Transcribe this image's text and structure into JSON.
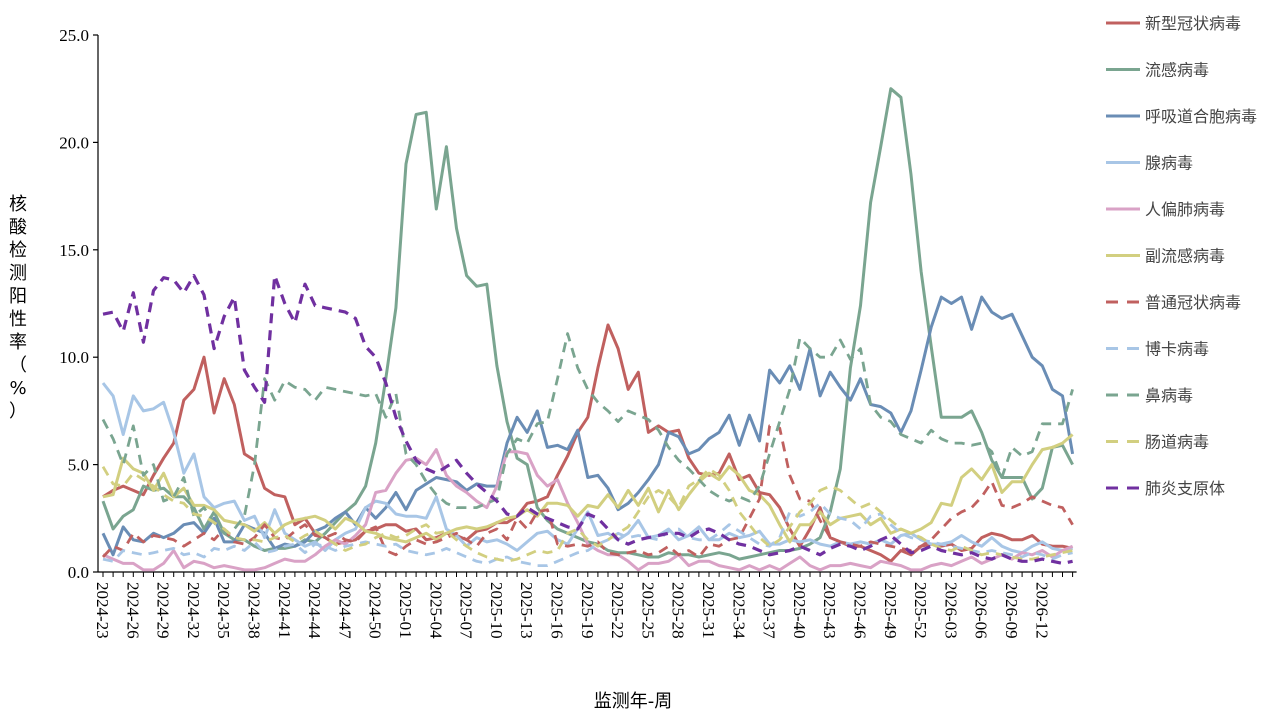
{
  "chart_data": {
    "type": "line",
    "title": "",
    "xlabel": "监测年-周",
    "ylabel": "核酸检测阳性率（%）",
    "ylim": [
      0,
      25
    ],
    "y_ticks": [
      "0.0",
      "5.0",
      "10.0",
      "15.0",
      "20.0",
      "25.0"
    ],
    "x_tick_every": 3,
    "x_tick_labels": [
      "2024-23",
      "2024-26",
      "2024-29",
      "2024-32",
      "2024-35",
      "2024-38",
      "2024-41",
      "2024-44",
      "2024-47",
      "2024-50",
      "2025-01",
      "2025-04",
      "2025-07",
      "2025-10",
      "2025-13",
      "2025-16",
      "2025-19",
      "2025-22",
      "2025-25",
      "2025-28",
      "2025-31",
      "2025-34",
      "2025-37",
      "2025-40",
      "2025-43",
      "2025-46",
      "2025-49",
      "2025-52",
      "2026-03",
      "2026-06",
      "2026-09",
      "2026-12"
    ],
    "grid": false,
    "legend_position": "right",
    "series": [
      {
        "name": "新型冠状病毒",
        "color": "#c0605f",
        "dash": false,
        "values": [
          3.5,
          3.8,
          4.0,
          3.8,
          3.6,
          4.5,
          5.3,
          6.0,
          8.0,
          8.5,
          10.0,
          7.4,
          9.0,
          7.8,
          5.5,
          5.2,
          3.9,
          3.6,
          3.5,
          2.2,
          2.5,
          1.8,
          1.6,
          1.3,
          1.4,
          1.5,
          1.9,
          2.0,
          2.2,
          2.2,
          1.9,
          2.0,
          1.5,
          1.6,
          1.8,
          1.7,
          1.5,
          1.9,
          2.0,
          2.3,
          2.3,
          2.6,
          3.2,
          3.3,
          3.5,
          4.5,
          5.4,
          6.5,
          7.2,
          9.5,
          11.5,
          10.4,
          8.5,
          9.3,
          6.5,
          6.8,
          6.5,
          6.6,
          5.3,
          4.6,
          4.5,
          4.6,
          5.5,
          4.3,
          4.5,
          3.7,
          3.6,
          3.0,
          2.0,
          1.2,
          2.0,
          3.0,
          1.6,
          1.4,
          1.2,
          1.2,
          1.0,
          0.8,
          0.5,
          1.0,
          0.8,
          1.2,
          1.3,
          1.2,
          1.3,
          1.0,
          1.1,
          1.6,
          1.8,
          1.7,
          1.5,
          1.5,
          1.7,
          1.3,
          1.2,
          1.2,
          1.1
        ]
      },
      {
        "name": "流感病毒",
        "color": "#7aa590",
        "dash": false,
        "values": [
          3.3,
          2.0,
          2.6,
          2.9,
          4.0,
          3.8,
          3.9,
          3.5,
          3.5,
          3.0,
          2.0,
          2.8,
          1.8,
          1.5,
          1.5,
          1.2,
          1.0,
          1.1,
          1.1,
          1.2,
          1.5,
          1.4,
          1.8,
          2.3,
          2.8,
          3.2,
          4.0,
          6.0,
          9.0,
          12.3,
          19.0,
          21.3,
          21.4,
          16.9,
          19.8,
          16.0,
          13.8,
          13.3,
          13.4,
          9.6,
          7.0,
          5.3,
          5.0,
          3.0,
          2.4,
          2.0,
          1.8,
          1.6,
          1.4,
          1.3,
          1.0,
          0.9,
          0.9,
          0.8,
          0.7,
          0.7,
          0.9,
          0.8,
          0.8,
          0.7,
          0.8,
          0.9,
          0.8,
          0.6,
          0.7,
          0.8,
          0.9,
          1.0,
          1.0,
          1.1,
          1.3,
          1.6,
          2.8,
          4.8,
          9.5,
          12.4,
          17.2,
          19.8,
          22.5,
          22.1,
          18.5,
          14.0,
          10.5,
          7.2,
          7.2,
          7.2,
          7.5,
          6.5,
          5.2,
          4.4,
          4.4,
          4.4,
          3.4,
          3.9,
          5.8,
          5.9,
          5.0
        ]
      },
      {
        "name": "呼吸道合胞病毒",
        "color": "#6a8db5",
        "dash": false,
        "values": [
          1.8,
          0.8,
          2.1,
          1.5,
          1.4,
          1.8,
          1.6,
          1.8,
          2.2,
          2.3,
          1.8,
          2.5,
          1.4,
          1.4,
          2.2,
          2.0,
          1.8,
          1.1,
          1.3,
          1.2,
          1.4,
          1.9,
          2.1,
          2.5,
          2.8,
          2.2,
          3.0,
          2.5,
          3.0,
          3.7,
          2.9,
          3.8,
          4.1,
          4.4,
          4.3,
          4.2,
          3.8,
          4.1,
          4.0,
          4.0,
          6.0,
          7.2,
          6.5,
          7.5,
          5.8,
          5.9,
          5.7,
          6.6,
          4.4,
          4.5,
          3.9,
          2.9,
          3.2,
          3.7,
          4.3,
          5.0,
          6.5,
          6.3,
          5.5,
          5.7,
          6.2,
          6.5,
          7.3,
          5.9,
          7.3,
          6.1,
          9.4,
          8.8,
          9.6,
          8.5,
          10.4,
          8.2,
          9.3,
          8.6,
          8.0,
          9.0,
          7.8,
          7.7,
          7.4,
          6.5,
          7.5,
          9.4,
          11.4,
          12.8,
          12.5,
          12.8,
          11.3,
          12.8,
          12.1,
          11.8,
          12.0,
          11.0,
          10.0,
          9.6,
          8.5,
          8.2,
          5.5
        ]
      },
      {
        "name": "腺病毒",
        "color": "#a8c6e6",
        "dash": false,
        "values": [
          8.8,
          8.2,
          6.4,
          8.2,
          7.5,
          7.6,
          7.9,
          6.5,
          4.6,
          5.5,
          3.5,
          3.0,
          3.2,
          3.3,
          2.4,
          2.6,
          1.6,
          2.9,
          1.8,
          1.5,
          1.2,
          1.4,
          1.0,
          1.5,
          1.8,
          2.0,
          3.0,
          3.3,
          3.2,
          2.7,
          2.6,
          2.6,
          2.5,
          3.5,
          2.0,
          1.7,
          1.2,
          1.6,
          1.4,
          1.5,
          1.3,
          1.0,
          1.4,
          1.8,
          1.9,
          1.5,
          1.3,
          2.0,
          2.8,
          1.7,
          1.8,
          1.5,
          1.8,
          2.4,
          1.6,
          1.7,
          2.0,
          1.5,
          1.7,
          2.1,
          1.5,
          1.5,
          1.8,
          1.6,
          1.7,
          1.9,
          1.3,
          1.3,
          1.5,
          1.4,
          1.5,
          1.3,
          1.2,
          1.4,
          1.3,
          1.4,
          1.3,
          1.5,
          1.3,
          1.7,
          1.8,
          1.5,
          1.3,
          1.3,
          1.4,
          1.7,
          1.4,
          1.2,
          1.6,
          1.2,
          1.0,
          0.9,
          1.2,
          1.4,
          1.1,
          1.0,
          1.1
        ]
      },
      {
        "name": "人偏肺病毒",
        "color": "#d9a2c6",
        "dash": false,
        "values": [
          0.8,
          0.6,
          0.4,
          0.4,
          0.1,
          0.1,
          0.4,
          1.0,
          0.2,
          0.5,
          0.4,
          0.2,
          0.3,
          0.2,
          0.1,
          0.1,
          0.2,
          0.4,
          0.6,
          0.5,
          0.5,
          0.8,
          1.2,
          1.5,
          1.3,
          1.7,
          2.2,
          3.7,
          3.8,
          4.6,
          5.2,
          5.3,
          5.0,
          5.7,
          4.5,
          4.0,
          3.7,
          3.3,
          3.0,
          4.0,
          5.6,
          5.6,
          5.5,
          4.5,
          4.0,
          4.3,
          3.2,
          2.3,
          1.3,
          1.0,
          0.8,
          0.8,
          0.5,
          0.1,
          0.4,
          0.4,
          0.5,
          0.8,
          0.3,
          0.5,
          0.5,
          0.3,
          0.2,
          0.1,
          0.3,
          0.1,
          0.3,
          0.1,
          0.4,
          0.7,
          0.3,
          0.1,
          0.3,
          0.3,
          0.4,
          0.3,
          0.2,
          0.5,
          0.4,
          0.3,
          0.1,
          0.1,
          0.3,
          0.4,
          0.3,
          0.5,
          0.7,
          0.4,
          0.6,
          0.8,
          0.6,
          0.9,
          0.8,
          1.0,
          0.7,
          1.0,
          1.2
        ]
      },
      {
        "name": "副流感病毒",
        "color": "#d2cf80",
        "dash": false,
        "values": [
          3.5,
          3.6,
          5.3,
          4.8,
          4.6,
          3.8,
          4.6,
          3.5,
          3.9,
          3.1,
          3.1,
          2.9,
          2.4,
          2.3,
          2.2,
          1.9,
          2.3,
          1.8,
          2.2,
          2.4,
          2.5,
          2.6,
          2.4,
          2.0,
          2.5,
          2.3,
          1.9,
          1.8,
          1.6,
          1.5,
          1.4,
          1.6,
          1.8,
          1.5,
          1.8,
          2.0,
          2.1,
          2.0,
          2.1,
          2.3,
          2.5,
          2.6,
          2.9,
          2.6,
          3.2,
          3.2,
          3.1,
          2.6,
          3.1,
          3.0,
          3.6,
          3.0,
          3.8,
          3.1,
          3.9,
          2.8,
          3.8,
          2.9,
          3.6,
          4.2,
          4.6,
          4.3,
          4.9,
          4.5,
          3.8,
          3.6,
          3.1,
          2.2,
          1.4,
          2.2,
          2.2,
          2.8,
          2.2,
          2.5,
          2.6,
          2.7,
          2.2,
          2.5,
          1.8,
          2.0,
          1.8,
          2.0,
          2.3,
          3.2,
          3.1,
          4.4,
          4.8,
          4.3,
          5.0,
          3.7,
          4.2,
          4.2,
          5.0,
          5.7,
          5.8,
          6.0,
          6.4
        ]
      },
      {
        "name": "普通冠状病毒",
        "color": "#c0605f",
        "dash": true,
        "values": [
          0.7,
          1.2,
          1.0,
          1.8,
          1.4,
          1.7,
          1.6,
          1.5,
          1.2,
          1.5,
          1.8,
          1.5,
          2.0,
          1.4,
          1.3,
          1.6,
          2.2,
          1.6,
          1.5,
          1.9,
          2.2,
          1.7,
          1.6,
          1.8,
          1.5,
          1.4,
          1.9,
          2.1,
          1.0,
          0.8,
          1.2,
          1.5,
          1.3,
          1.4,
          1.6,
          1.8,
          1.5,
          1.2,
          1.8,
          2.0,
          1.5,
          2.5,
          2.0,
          2.8,
          2.9,
          1.3,
          1.2,
          1.3,
          1.2,
          1.4,
          0.9,
          0.8,
          0.9,
          1.0,
          0.8,
          0.9,
          1.2,
          0.8,
          1.0,
          0.7,
          1.3,
          1.2,
          1.5,
          1.6,
          2.5,
          3.4,
          6.8,
          6.7,
          4.5,
          3.4,
          3.3,
          2.4,
          1.6,
          1.4,
          1.3,
          1.2,
          1.4,
          1.3,
          1.2,
          1.1,
          1.0,
          1.2,
          1.5,
          2.0,
          2.5,
          2.8,
          3.0,
          3.5,
          4.2,
          3.1,
          3.0,
          3.2,
          3.5,
          3.3,
          3.1,
          3.0,
          2.2
        ]
      },
      {
        "name": "博卡病毒",
        "color": "#a8c6e6",
        "dash": true,
        "values": [
          0.6,
          0.5,
          1.0,
          0.9,
          0.8,
          0.9,
          1.0,
          1.1,
          0.8,
          0.9,
          0.7,
          1.1,
          1.0,
          1.2,
          1.0,
          1.4,
          0.9,
          1.0,
          1.2,
          1.3,
          0.9,
          1.3,
          1.2,
          1.0,
          1.2,
          1.3,
          1.4,
          1.3,
          1.2,
          1.3,
          1.0,
          0.9,
          0.8,
          0.9,
          1.1,
          0.9,
          0.7,
          0.5,
          0.4,
          0.6,
          0.7,
          0.5,
          0.4,
          0.3,
          0.3,
          0.5,
          0.7,
          0.9,
          1.0,
          1.3,
          1.5,
          1.8,
          1.6,
          1.7,
          1.6,
          1.5,
          1.9,
          2.0,
          1.6,
          1.5,
          1.5,
          1.8,
          2.2,
          1.9,
          1.6,
          1.3,
          1.2,
          1.6,
          2.8,
          2.6,
          2.8,
          3.2,
          2.7,
          2.5,
          2.4,
          2.0,
          2.6,
          2.7,
          2.2,
          1.8,
          1.6,
          1.5,
          1.4,
          1.3,
          1.2,
          1.1,
          1.0,
          0.9,
          1.0,
          0.9,
          0.8,
          0.7,
          0.9,
          0.8,
          0.6,
          0.8,
          0.9
        ]
      },
      {
        "name": "鼻病毒",
        "color": "#7aa590",
        "dash": true,
        "values": [
          7.1,
          6.2,
          5.0,
          6.8,
          4.5,
          5.0,
          3.3,
          3.5,
          4.4,
          2.6,
          3.0,
          2.3,
          1.8,
          2.0,
          2.6,
          5.0,
          9.0,
          8.0,
          8.9,
          8.6,
          8.5,
          8.0,
          8.6,
          8.5,
          8.4,
          8.3,
          8.2,
          8.3,
          7.2,
          8.3,
          5.5,
          5.0,
          4.2,
          3.6,
          3.2,
          3.0,
          3.0,
          3.0,
          3.2,
          3.4,
          5.5,
          6.2,
          6.0,
          6.9,
          7.0,
          9.0,
          11.1,
          9.5,
          8.5,
          7.9,
          7.5,
          7.0,
          7.5,
          7.3,
          7.1,
          6.6,
          5.8,
          5.2,
          4.8,
          4.3,
          3.8,
          3.5,
          3.3,
          3.5,
          3.3,
          4.0,
          5.5,
          7.0,
          8.5,
          10.9,
          10.4,
          10.0,
          10.0,
          10.8,
          9.9,
          10.4,
          7.8,
          7.2,
          7.0,
          6.4,
          6.2,
          6.0,
          6.6,
          6.2,
          6.0,
          6.0,
          5.9,
          6.0,
          5.6,
          4.4,
          5.8,
          5.4,
          5.6,
          6.9,
          6.9,
          6.9,
          8.5
        ]
      },
      {
        "name": "肠道病毒",
        "color": "#d2cf80",
        "dash": true,
        "values": [
          4.9,
          4.1,
          4.0,
          4.6,
          4.3,
          4.0,
          3.6,
          3.3,
          3.2,
          2.7,
          2.6,
          2.3,
          2.0,
          1.6,
          1.5,
          1.5,
          1.4,
          1.6,
          1.7,
          1.4,
          1.7,
          1.9,
          1.6,
          1.3,
          1.0,
          1.2,
          1.3,
          1.6,
          1.8,
          1.6,
          1.7,
          2.0,
          2.2,
          1.8,
          1.9,
          1.5,
          1.2,
          0.9,
          0.7,
          0.6,
          0.5,
          0.6,
          0.8,
          1.0,
          0.9,
          1.0,
          1.8,
          2.0,
          1.5,
          1.2,
          1.5,
          1.8,
          2.1,
          2.8,
          3.5,
          3.8,
          3.5,
          3.0,
          4.0,
          4.3,
          4.8,
          4.5,
          3.8,
          2.8,
          2.2,
          1.6,
          1.2,
          1.5,
          2.1,
          2.8,
          3.2,
          3.8,
          4.0,
          3.8,
          3.4,
          3.0,
          3.2,
          2.8,
          2.4,
          2.0,
          1.8,
          1.6,
          1.3,
          1.1,
          1.0,
          1.2,
          1.0,
          0.8,
          0.9,
          0.8,
          0.7,
          0.6,
          0.6,
          0.7,
          0.8,
          0.9,
          1.0
        ]
      },
      {
        "name": "肺炎支原体",
        "color": "#7030a0",
        "dash": true,
        "values": [
          12.0,
          12.1,
          11.2,
          13.0,
          10.7,
          13.1,
          13.7,
          13.6,
          13.0,
          13.8,
          12.9,
          10.4,
          11.9,
          12.8,
          9.4,
          8.6,
          7.9,
          13.8,
          12.5,
          11.6,
          13.4,
          12.4,
          12.3,
          12.2,
          12.1,
          11.8,
          10.5,
          10.0,
          8.8,
          7.2,
          6.1,
          5.2,
          4.8,
          4.6,
          4.9,
          5.2,
          4.6,
          4.1,
          3.7,
          3.3,
          2.7,
          2.6,
          3.0,
          2.7,
          2.5,
          2.3,
          2.1,
          2.0,
          2.7,
          2.5,
          2.0,
          1.5,
          1.3,
          1.5,
          1.6,
          1.7,
          1.8,
          1.8,
          1.6,
          1.9,
          2.0,
          1.8,
          1.5,
          1.3,
          1.2,
          1.0,
          0.8,
          0.9,
          1.0,
          1.2,
          1.0,
          0.8,
          1.1,
          1.3,
          1.2,
          1.0,
          1.2,
          1.5,
          1.7,
          1.3,
          0.9,
          1.0,
          1.2,
          1.0,
          0.9,
          0.8,
          0.9,
          0.7,
          0.6,
          0.8,
          0.6,
          0.5,
          0.5,
          0.6,
          0.5,
          0.4,
          0.5
        ]
      }
    ]
  }
}
